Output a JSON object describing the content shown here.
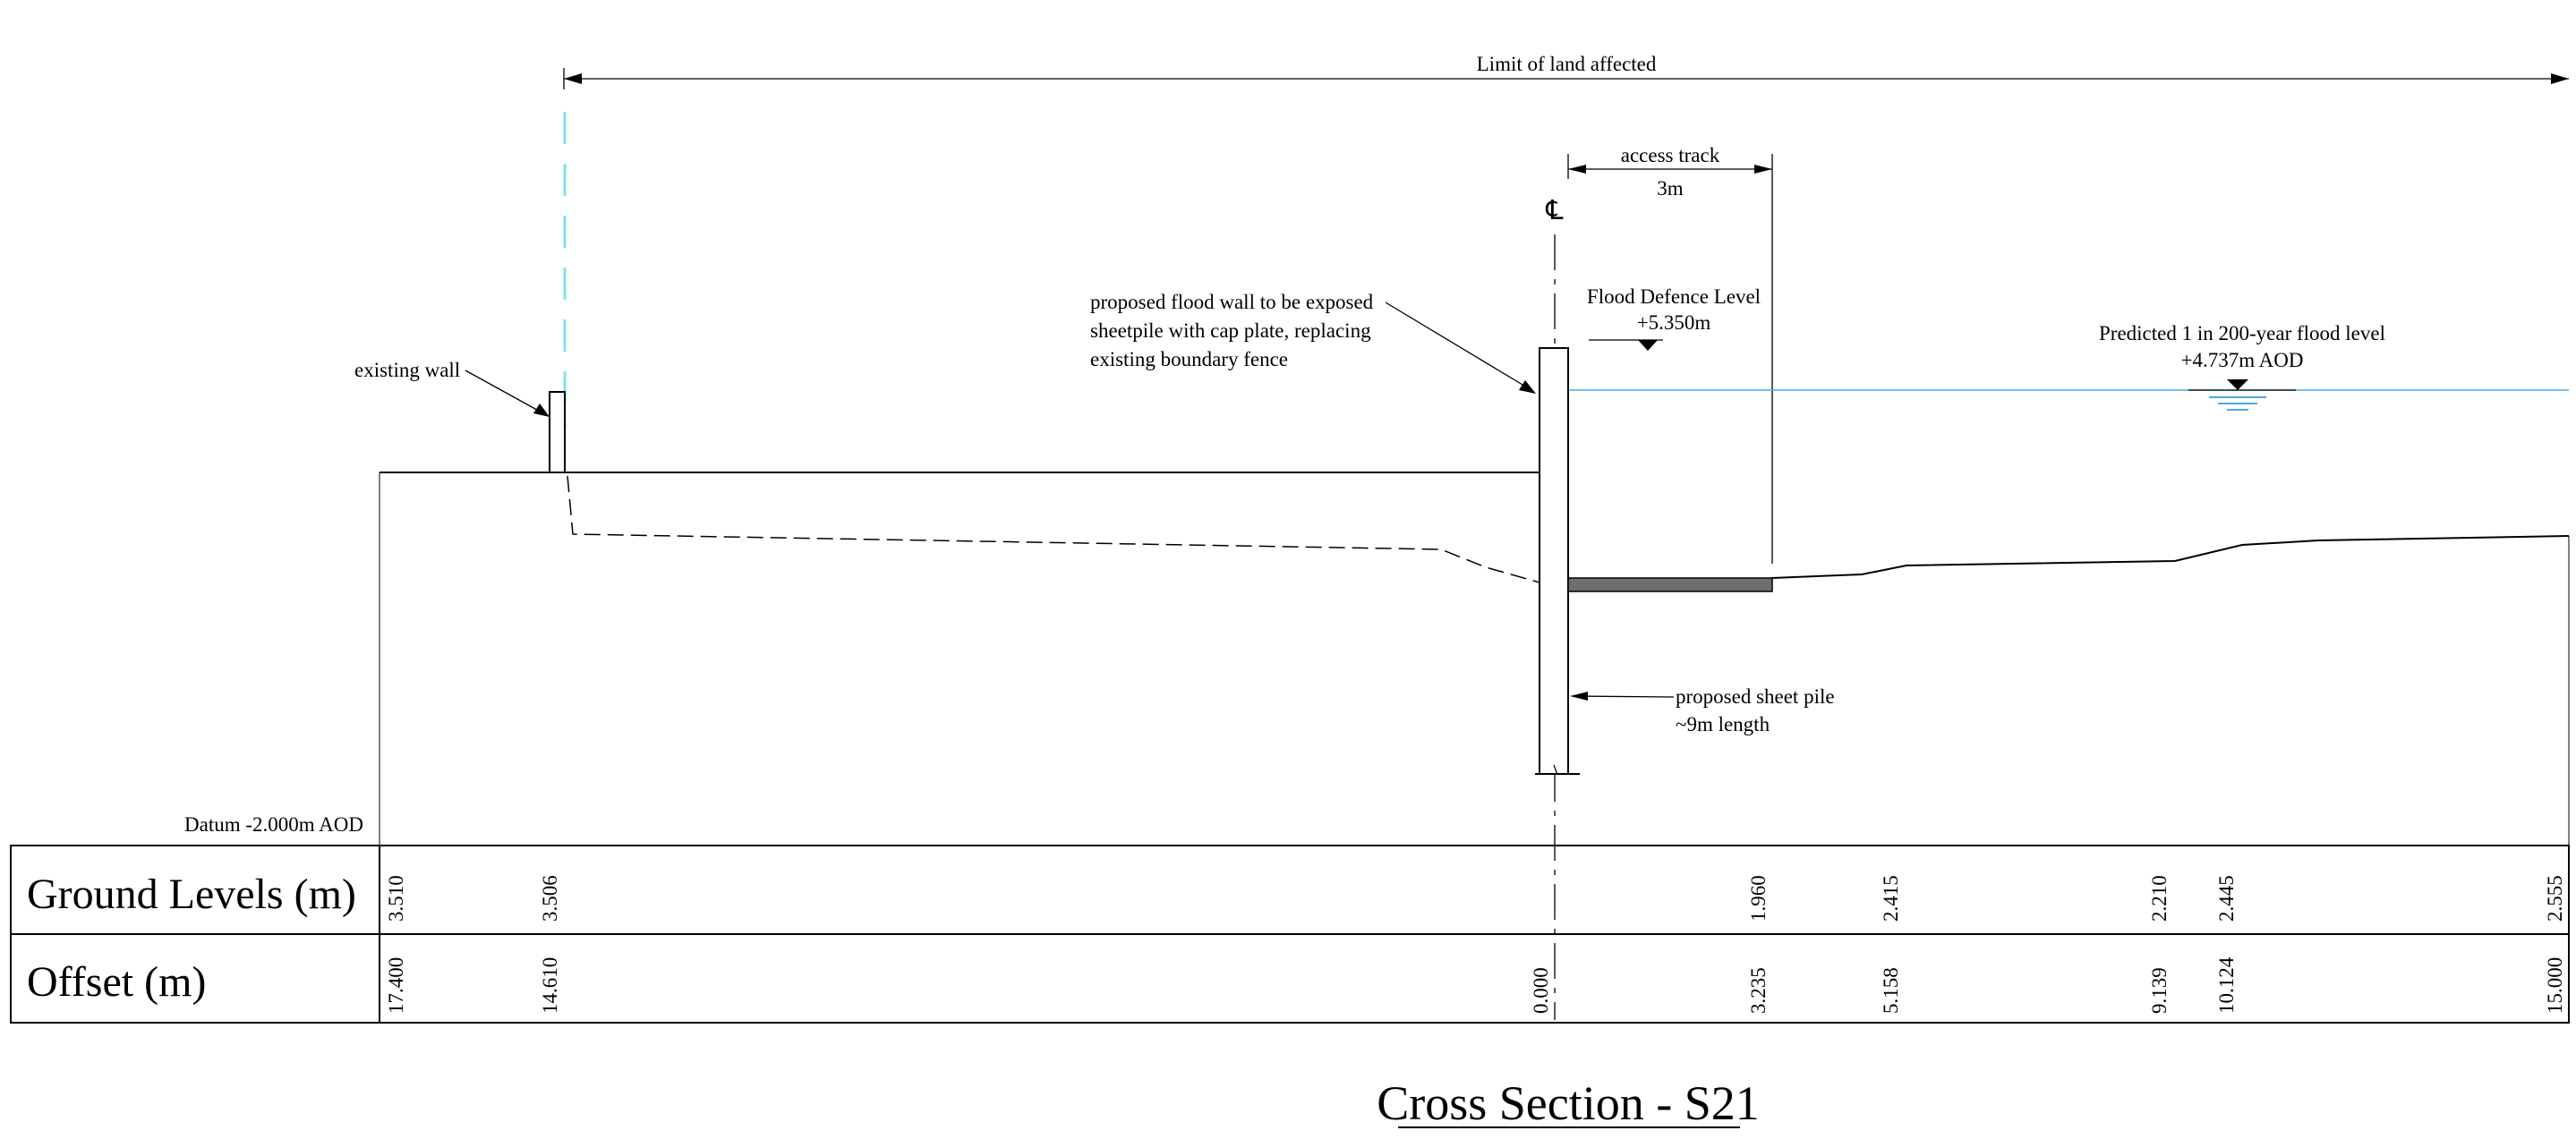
{
  "labels": {
    "limit_of_land": "Limit of land affected",
    "access_track": "access track",
    "access_width": "3m",
    "centreline_symbol": "℄",
    "flood_defence_level": "Flood Defence Level",
    "flood_defence_value": "+5.350m",
    "flood_wall_line1": "proposed flood wall to be exposed",
    "flood_wall_line2": "sheetpile with cap plate, replacing",
    "flood_wall_line3": "existing boundary fence",
    "predicted_flood_line1": "Predicted 1 in 200-year flood level",
    "predicted_flood_line2": "+4.737m AOD",
    "existing_wall": "existing wall",
    "sheet_pile_line1": "proposed sheet pile",
    "sheet_pile_line2": "~9m length",
    "datum": "Datum -2.000m AOD"
  },
  "table": {
    "ground_levels_header": "Ground Levels (m)",
    "offset_header": "Offset (m)",
    "ground_levels": [
      "3.510",
      "3.506",
      "1.960",
      "2.415",
      "2.210",
      "2.445",
      "2.555"
    ],
    "offsets": [
      "17.400",
      "14.610",
      "0.000",
      "3.235",
      "5.158",
      "9.139",
      "10.124",
      "15.000"
    ]
  },
  "title": "Cross Section - S21",
  "colors": {
    "water": "#4fa8e0",
    "limit_dash": "#7fe3ea",
    "track_fill": "#6e6e6e"
  }
}
